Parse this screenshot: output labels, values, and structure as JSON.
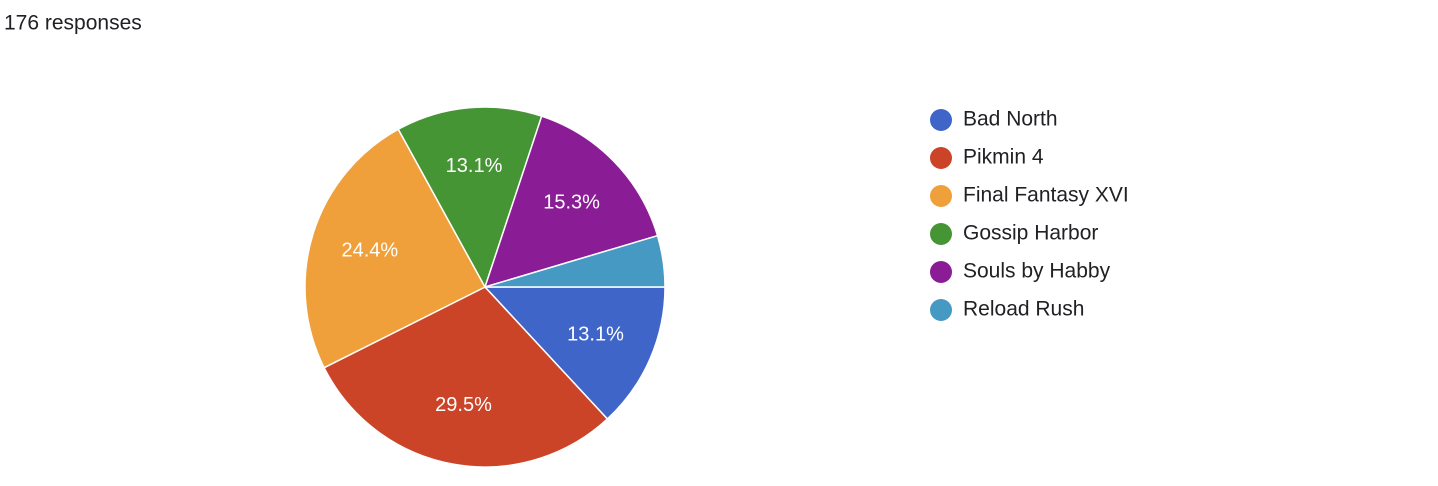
{
  "chart_data": {
    "type": "pie",
    "title": "176 responses",
    "categories": [
      "Bad North",
      "Pikmin 4",
      "Final Fantasy XVI",
      "Gossip Harbor",
      "Souls by Habby",
      "Reload Rush"
    ],
    "values": [
      13.1,
      29.5,
      24.4,
      13.1,
      15.3,
      4.6
    ],
    "value_labels": [
      "13.1%",
      "29.5%",
      "24.4%",
      "13.1%",
      "15.3%",
      null
    ],
    "colors": [
      "#3f65c8",
      "#cc4428",
      "#f0a03a",
      "#469535",
      "#8a1d95",
      "#4599c3"
    ],
    "legend": "right"
  }
}
